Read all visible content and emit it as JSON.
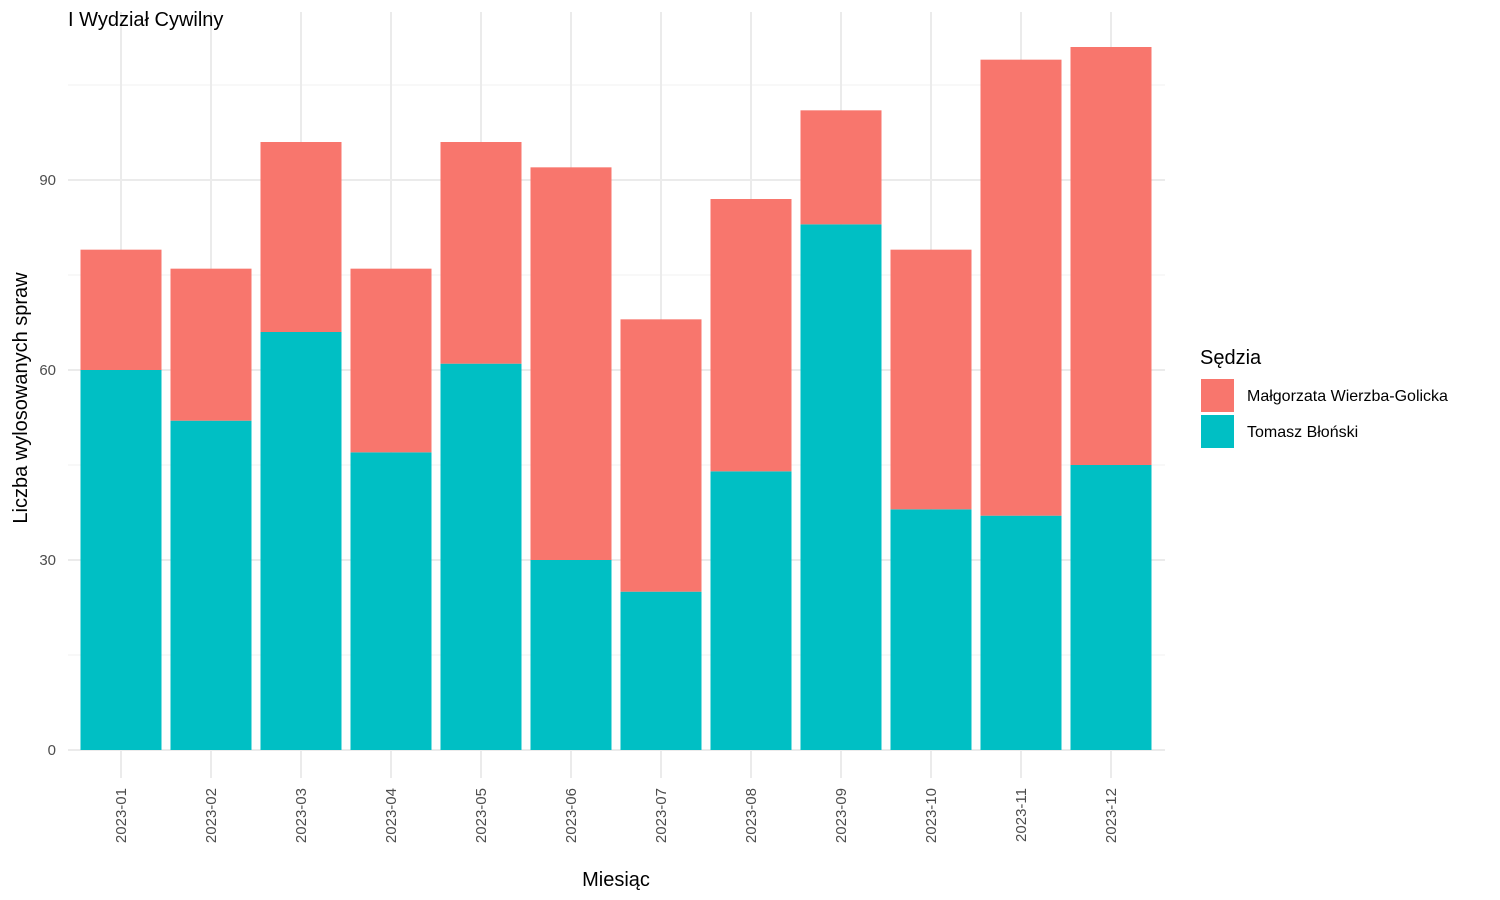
{
  "chart_data": {
    "type": "bar",
    "stacked": true,
    "title": "I Wydział Cywilny",
    "xlabel": "Miesiąc",
    "ylabel": "Liczba wylosowanych spraw",
    "categories": [
      "2023-01",
      "2023-02",
      "2023-03",
      "2023-04",
      "2023-05",
      "2023-06",
      "2023-07",
      "2023-08",
      "2023-09",
      "2023-10",
      "2023-11",
      "2023-12"
    ],
    "series": [
      {
        "name": "Tomasz Błoński",
        "color": "#00BFC4",
        "values": [
          60,
          52,
          66,
          47,
          61,
          30,
          25,
          44,
          83,
          38,
          37,
          45
        ]
      },
      {
        "name": "Małgorzata Wierzba-Golicka",
        "color": "#F8766D",
        "values": [
          19,
          24,
          30,
          29,
          35,
          62,
          43,
          43,
          18,
          41,
          72,
          66
        ]
      }
    ],
    "ylim": [
      0,
      115
    ],
    "yticks": [
      0,
      30,
      60,
      90
    ],
    "grid": true,
    "legend": {
      "title": "Sędzia",
      "position": "right",
      "order": [
        "Małgorzata Wierzba-Golicka",
        "Tomasz Błoński"
      ]
    }
  }
}
